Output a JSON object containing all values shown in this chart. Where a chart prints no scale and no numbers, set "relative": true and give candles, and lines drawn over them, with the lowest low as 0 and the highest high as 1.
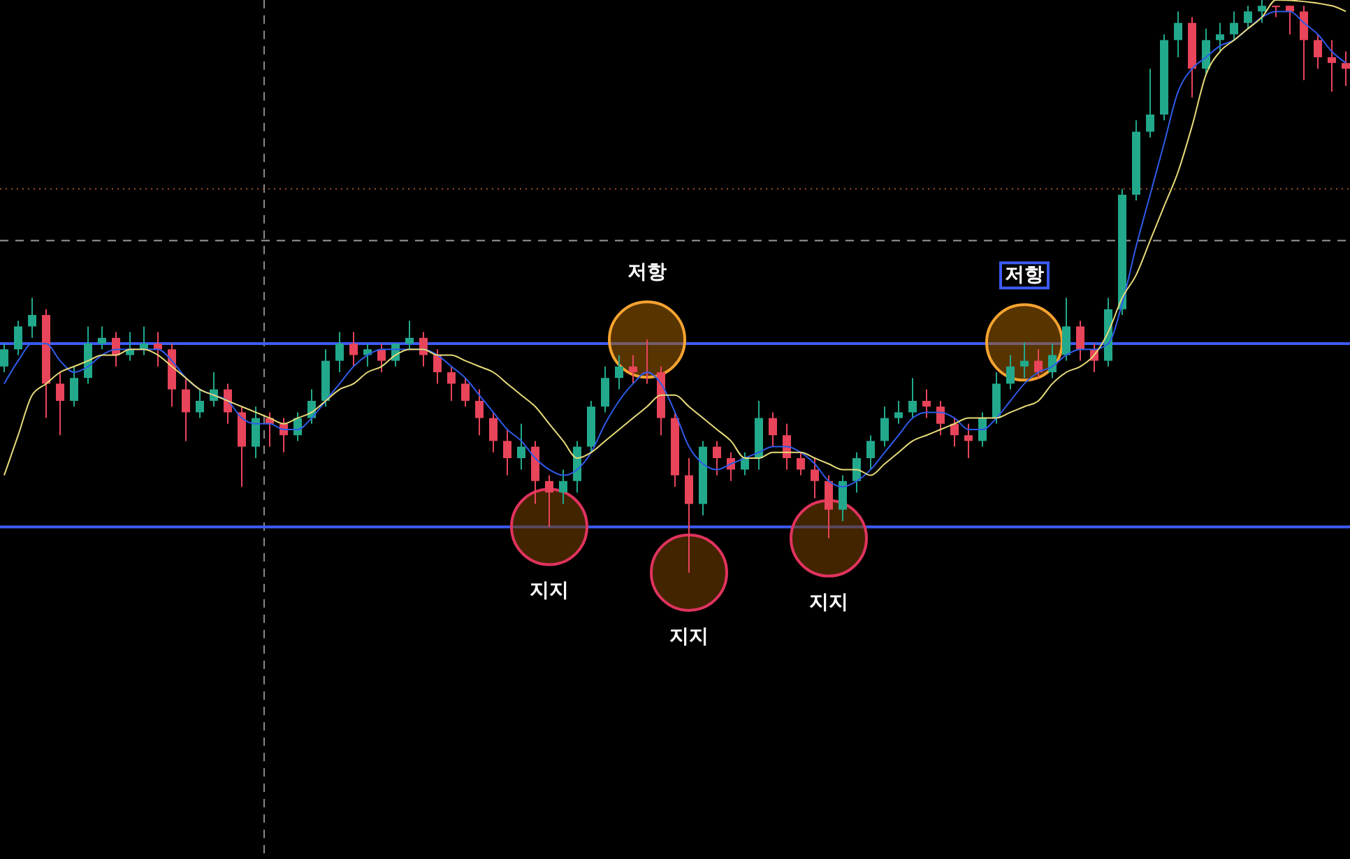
{
  "chart_data": {
    "type": "candlestick",
    "relative": true,
    "tick_labels": false,
    "categories": [
      null,
      null,
      null,
      null,
      null,
      null,
      null,
      null,
      null,
      null,
      null,
      null,
      null,
      null,
      null,
      null,
      null,
      null,
      null,
      null,
      null,
      null,
      null,
      null,
      null,
      null,
      null,
      null,
      null,
      null,
      null,
      null,
      null,
      null,
      null,
      null,
      null,
      null,
      null,
      null,
      null,
      null,
      null,
      null,
      null,
      null,
      null,
      null,
      null,
      null,
      null,
      null,
      null,
      null,
      null,
      null,
      null,
      null,
      null,
      null,
      null,
      null,
      null,
      null,
      null,
      null,
      null,
      null,
      null,
      null,
      null,
      null,
      null,
      null,
      null,
      null,
      null,
      null,
      null,
      null,
      null,
      null,
      null,
      null,
      null,
      null,
      null,
      null,
      null,
      null,
      null,
      null,
      null,
      null,
      null,
      null,
      null
    ],
    "ohlc": [
      [
        0.36,
        0.4,
        0.35,
        0.39
      ],
      [
        0.39,
        0.44,
        0.38,
        0.43
      ],
      [
        0.43,
        0.48,
        0.41,
        0.45
      ],
      [
        0.45,
        0.46,
        0.27,
        0.33
      ],
      [
        0.33,
        0.35,
        0.24,
        0.3
      ],
      [
        0.3,
        0.36,
        0.29,
        0.34
      ],
      [
        0.34,
        0.43,
        0.33,
        0.4
      ],
      [
        0.4,
        0.43,
        0.39,
        0.41
      ],
      [
        0.41,
        0.42,
        0.36,
        0.38
      ],
      [
        0.38,
        0.42,
        0.37,
        0.39
      ],
      [
        0.39,
        0.43,
        0.38,
        0.4
      ],
      [
        0.4,
        0.42,
        0.36,
        0.39
      ],
      [
        0.39,
        0.4,
        0.29,
        0.32
      ],
      [
        0.32,
        0.34,
        0.23,
        0.28
      ],
      [
        0.28,
        0.32,
        0.27,
        0.3
      ],
      [
        0.3,
        0.35,
        0.29,
        0.32
      ],
      [
        0.32,
        0.33,
        0.26,
        0.28
      ],
      [
        0.28,
        0.29,
        0.15,
        0.22
      ],
      [
        0.22,
        0.29,
        0.2,
        0.27
      ],
      [
        0.27,
        0.28,
        0.22,
        0.26
      ],
      [
        0.26,
        0.27,
        0.21,
        0.24
      ],
      [
        0.24,
        0.28,
        0.23,
        0.27
      ],
      [
        0.27,
        0.32,
        0.26,
        0.3
      ],
      [
        0.3,
        0.39,
        0.29,
        0.37
      ],
      [
        0.37,
        0.42,
        0.35,
        0.4
      ],
      [
        0.4,
        0.42,
        0.36,
        0.38
      ],
      [
        0.38,
        0.4,
        0.36,
        0.39
      ],
      [
        0.39,
        0.4,
        0.35,
        0.37
      ],
      [
        0.37,
        0.4,
        0.36,
        0.4
      ],
      [
        0.4,
        0.44,
        0.39,
        0.41
      ],
      [
        0.41,
        0.42,
        0.36,
        0.38
      ],
      [
        0.38,
        0.39,
        0.33,
        0.35
      ],
      [
        0.35,
        0.36,
        0.3,
        0.33
      ],
      [
        0.33,
        0.34,
        0.29,
        0.3
      ],
      [
        0.3,
        0.32,
        0.24,
        0.27
      ],
      [
        0.27,
        0.28,
        0.21,
        0.23
      ],
      [
        0.23,
        0.25,
        0.17,
        0.2
      ],
      [
        0.2,
        0.26,
        0.18,
        0.22
      ],
      [
        0.22,
        0.23,
        0.12,
        0.16
      ],
      [
        0.16,
        0.17,
        0.08,
        0.14
      ],
      [
        0.14,
        0.18,
        0.12,
        0.16
      ],
      [
        0.16,
        0.23,
        0.14,
        0.22
      ],
      [
        0.22,
        0.3,
        0.21,
        0.29
      ],
      [
        0.29,
        0.36,
        0.28,
        0.34
      ],
      [
        0.34,
        0.38,
        0.32,
        0.36
      ],
      [
        0.36,
        0.38,
        0.33,
        0.35
      ],
      [
        0.35,
        0.407,
        0.33,
        0.35
      ],
      [
        0.35,
        0.36,
        0.24,
        0.27
      ],
      [
        0.27,
        0.28,
        0.15,
        0.17
      ],
      [
        0.17,
        0.2,
        0,
        0.12
      ],
      [
        0.12,
        0.23,
        0.1,
        0.22
      ],
      [
        0.22,
        0.23,
        0.17,
        0.2
      ],
      [
        0.2,
        0.21,
        0.16,
        0.18
      ],
      [
        0.18,
        0.21,
        0.17,
        0.2
      ],
      [
        0.2,
        0.3,
        0.18,
        0.27
      ],
      [
        0.27,
        0.28,
        0.22,
        0.24
      ],
      [
        0.24,
        0.26,
        0.18,
        0.2
      ],
      [
        0.2,
        0.21,
        0.17,
        0.18
      ],
      [
        0.18,
        0.2,
        0.13,
        0.16
      ],
      [
        0.16,
        0.17,
        0.06,
        0.11
      ],
      [
        0.11,
        0.17,
        0.09,
        0.16
      ],
      [
        0.16,
        0.21,
        0.14,
        0.2
      ],
      [
        0.2,
        0.24,
        0.18,
        0.23
      ],
      [
        0.23,
        0.29,
        0.22,
        0.27
      ],
      [
        0.27,
        0.3,
        0.26,
        0.28
      ],
      [
        0.28,
        0.34,
        0.27,
        0.3
      ],
      [
        0.3,
        0.32,
        0.27,
        0.29
      ],
      [
        0.29,
        0.3,
        0.24,
        0.26
      ],
      [
        0.26,
        0.27,
        0.22,
        0.24
      ],
      [
        0.24,
        0.26,
        0.2,
        0.23
      ],
      [
        0.23,
        0.28,
        0.22,
        0.27
      ],
      [
        0.27,
        0.35,
        0.26,
        0.33
      ],
      [
        0.33,
        0.38,
        0.32,
        0.36
      ],
      [
        0.36,
        0.402,
        0.34,
        0.37
      ],
      [
        0.37,
        0.39,
        0.34,
        0.35
      ],
      [
        0.35,
        0.4,
        0.34,
        0.38
      ],
      [
        0.38,
        0.48,
        0.37,
        0.43
      ],
      [
        0.43,
        0.44,
        0.37,
        0.39
      ],
      [
        0.39,
        0.4,
        0.35,
        0.37
      ],
      [
        0.37,
        0.48,
        0.36,
        0.46
      ],
      [
        0.46,
        0.67,
        0.45,
        0.66
      ],
      [
        0.66,
        0.79,
        0.65,
        0.77
      ],
      [
        0.77,
        0.88,
        0.76,
        0.8
      ],
      [
        0.8,
        0.94,
        0.79,
        0.93
      ],
      [
        0.93,
        0.98,
        0.9,
        0.96
      ],
      [
        0.96,
        0.97,
        0.83,
        0.88
      ],
      [
        0.88,
        0.95,
        0.87,
        0.93
      ],
      [
        0.93,
        0.96,
        0.91,
        0.94
      ],
      [
        0.94,
        0.98,
        0.93,
        0.96
      ],
      [
        0.96,
        0.99,
        0.95,
        0.98
      ],
      [
        0.98,
        1,
        0.96,
        0.99
      ],
      [
        0.99,
        0.99,
        0.97,
        0.99
      ],
      [
        0.99,
        0.99,
        0.94,
        0.98
      ],
      [
        0.98,
        0.99,
        0.86,
        0.93
      ],
      [
        0.93,
        0.94,
        0.88,
        0.9
      ],
      [
        0.9,
        0.93,
        0.84,
        0.89
      ],
      [
        0.89,
        0.91,
        0.85,
        0.88
      ]
    ],
    "series": [
      {
        "type": "line",
        "color": "#2f5bea",
        "values": [
          0.33,
          0.37,
          0.4,
          0.4,
          0.37,
          0.35,
          0.36,
          0.38,
          0.39,
          0.39,
          0.39,
          0.39,
          0.37,
          0.34,
          0.32,
          0.31,
          0.3,
          0.27,
          0.26,
          0.26,
          0.25,
          0.25,
          0.27,
          0.3,
          0.33,
          0.36,
          0.38,
          0.39,
          0.39,
          0.39,
          0.39,
          0.38,
          0.36,
          0.34,
          0.31,
          0.28,
          0.25,
          0.23,
          0.2,
          0.18,
          0.17,
          0.18,
          0.21,
          0.26,
          0.3,
          0.33,
          0.35,
          0.33,
          0.28,
          0.22,
          0.19,
          0.18,
          0.19,
          0.2,
          0.21,
          0.22,
          0.22,
          0.21,
          0.19,
          0.16,
          0.15,
          0.16,
          0.18,
          0.21,
          0.24,
          0.27,
          0.28,
          0.28,
          0.27,
          0.25,
          0.25,
          0.27,
          0.3,
          0.33,
          0.35,
          0.36,
          0.38,
          0.39,
          0.39,
          0.4,
          0.47,
          0.57,
          0.66,
          0.75,
          0.84,
          0.88,
          0.9,
          0.92,
          0.93,
          0.95,
          0.97,
          0.98,
          0.98,
          0.96,
          0.94,
          0.91,
          0.89
        ]
      },
      {
        "type": "line",
        "color": "#e8dc7a",
        "values": [
          0.17,
          0.24,
          0.31,
          0.33,
          0.35,
          0.36,
          0.37,
          0.38,
          0.38,
          0.39,
          0.39,
          0.38,
          0.36,
          0.34,
          0.32,
          0.31,
          0.3,
          0.29,
          0.28,
          0.27,
          0.26,
          0.27,
          0.28,
          0.3,
          0.32,
          0.33,
          0.35,
          0.36,
          0.38,
          0.39,
          0.39,
          0.38,
          0.38,
          0.37,
          0.36,
          0.35,
          0.33,
          0.31,
          0.29,
          0.26,
          0.23,
          0.2,
          0.21,
          0.23,
          0.25,
          0.27,
          0.29,
          0.31,
          0.31,
          0.29,
          0.27,
          0.25,
          0.23,
          0.2,
          0.2,
          0.21,
          0.21,
          0.21,
          0.2,
          0.19,
          0.18,
          0.18,
          0.17,
          0.19,
          0.21,
          0.23,
          0.24,
          0.25,
          0.26,
          0.27,
          0.27,
          0.27,
          0.28,
          0.29,
          0.3,
          0.33,
          0.35,
          0.36,
          0.38,
          0.42,
          0.48,
          0.52,
          0.58,
          0.64,
          0.7,
          0.78,
          0.87,
          0.91,
          0.93,
          0.95,
          0.97,
          1,
          null,
          null,
          null,
          0.99,
          0.98
        ]
      }
    ],
    "ref_lines": [
      {
        "axis": "y",
        "value": 0.4,
        "color": "#3d5cf5",
        "line_style": "solid"
      },
      {
        "axis": "y",
        "value": 0.08,
        "color": "#3d5cf5",
        "line_style": "solid"
      },
      {
        "axis": "y",
        "value": 0.58,
        "color": "#9a9a9a",
        "line_style": "dashed"
      },
      {
        "axis": "y",
        "value": 0.67,
        "color": "#a0522d",
        "line_style": "dotted"
      }
    ],
    "annotations": [
      {
        "text": "지지",
        "y": 0.08
      },
      {
        "text": "저항",
        "y": 0.407
      },
      {
        "text": "지지",
        "y": 0
      },
      {
        "text": "지지",
        "y": 0.06
      },
      {
        "text": "저항",
        "y": 0.402
      }
    ]
  }
}
